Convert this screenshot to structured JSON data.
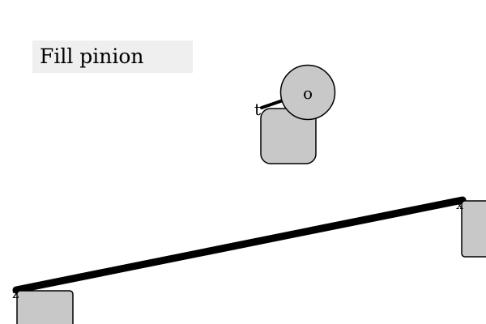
{
  "task": {
    "title": "Fill pinion"
  },
  "objects": {
    "pinion_label": "o",
    "handle_label": "t",
    "left_anchor_label": "z",
    "right_anchor_label": "x"
  },
  "colors": {
    "background": "#ffffff",
    "label_bg": "#efefef",
    "block_fill": "#c8c8c8",
    "stroke": "#000000"
  }
}
